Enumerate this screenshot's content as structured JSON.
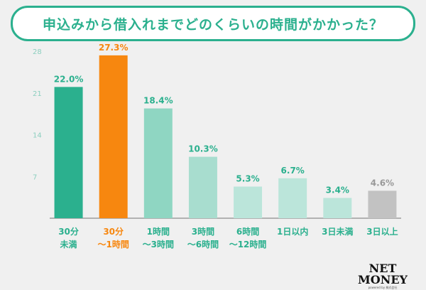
{
  "header": {
    "title": "申込みから借入れまでどのくらいの時間がかかった？"
  },
  "chart_data": {
    "type": "bar",
    "title": "申込みから借入れまでどのくらいの時間がかかった？",
    "categories": [
      [
        "30分",
        "未満"
      ],
      [
        "30分",
        "～1時間"
      ],
      [
        "1時間",
        "～3時間"
      ],
      [
        "3時間",
        "～6時間"
      ],
      [
        "6時間",
        "～12時間"
      ],
      [
        "1日以内"
      ],
      [
        "3日未満"
      ],
      [
        "3日以上"
      ]
    ],
    "values": [
      22.0,
      27.3,
      18.4,
      10.3,
      5.3,
      6.7,
      3.4,
      4.6
    ],
    "value_labels": [
      "22.0%",
      "27.3%",
      "18.4%",
      "10.3%",
      "5.3%",
      "6.7%",
      "3.4%",
      "4.6%"
    ],
    "bar_colors": [
      "#2bb08e",
      "#f7870f",
      "#8fd6c2",
      "#a8ddcf",
      "#bbe5da",
      "#bbe5da",
      "#bbe5da",
      "#c2c2c2"
    ],
    "label_colors": [
      "#2bb08e",
      "#f7870f",
      "#2bb08e",
      "#2bb08e",
      "#2bb08e",
      "#2bb08e",
      "#2bb08e",
      "#999999"
    ],
    "category_colors": [
      "#2bb08e",
      "#f7870f",
      "#2bb08e",
      "#2bb08e",
      "#2bb08e",
      "#2bb08e",
      "#2bb08e",
      "#2bb08e"
    ],
    "yticks": [
      7,
      14,
      21,
      28
    ],
    "ylim": [
      0,
      28
    ],
    "xlabel": "",
    "ylabel": ""
  },
  "logo": {
    "text": "NET MONEY",
    "subtext": "powered by 株式会社"
  }
}
